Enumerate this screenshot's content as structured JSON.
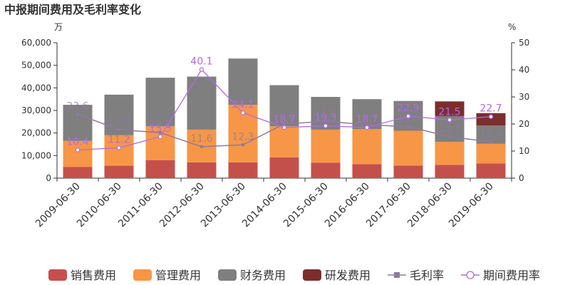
{
  "title": "中报期间费用及毛利率变化",
  "chart_data": {
    "type": "bar",
    "title": "中报期间费用及毛利率变化",
    "left_axis_label": "万",
    "right_axis_label": "%",
    "left_ylim": [
      0,
      60000
    ],
    "left_ticks": [
      0,
      10000,
      20000,
      30000,
      40000,
      50000,
      60000
    ],
    "left_tick_labels": [
      "0",
      "10,000",
      "20,000",
      "30,000",
      "40,000",
      "50,000",
      "60,000"
    ],
    "right_ylim": [
      0,
      50
    ],
    "right_ticks": [
      0,
      10,
      20,
      30,
      40,
      50
    ],
    "right_tick_labels": [
      "0",
      "10",
      "20",
      "30",
      "40",
      "50"
    ],
    "categories": [
      "2009-06-30",
      "2010-06-30",
      "2011-06-30",
      "2012-06-30",
      "2013-06-30",
      "2014-06-30",
      "2015-06-30",
      "2016-06-30",
      "2017-06-30",
      "2018-06-30",
      "2019-06-30"
    ],
    "grid": false,
    "legend_position": "bottom",
    "bar_series": [
      {
        "name": "销售费用",
        "color": "#c4504c",
        "values": [
          5000,
          5500,
          8000,
          7000,
          7000,
          9200,
          6800,
          6200,
          5600,
          5900,
          6500
        ]
      },
      {
        "name": "管理费用",
        "color": "#f79646",
        "values": [
          11500,
          13500,
          15000,
          14500,
          25500,
          13800,
          14700,
          15500,
          15400,
          10200,
          8700
        ]
      },
      {
        "name": "财务费用",
        "color": "#7f7f7f",
        "values": [
          16000,
          18000,
          21500,
          23500,
          20500,
          18200,
          14500,
          13300,
          13200,
          11400,
          8100
        ]
      },
      {
        "name": "研发费用",
        "color": "#7b2e2c",
        "values": [
          0,
          0,
          0,
          0,
          0,
          0,
          0,
          0,
          0,
          6500,
          5500
        ]
      }
    ],
    "line_series": [
      {
        "name": "毛利率",
        "color": "#8d7aa0",
        "marker": "square",
        "values": [
          23.6,
          17.9,
          16.8,
          11.6,
          12.3,
          20.0,
          21.0,
          19.7,
          19.0,
          15.3,
          13.4
        ],
        "labels": [
          "23.6",
          "17.9",
          "16.8",
          "11.6",
          "12.3",
          "20.0",
          "21.0",
          "19.7",
          "19.0",
          "15.3",
          "13.4"
        ]
      },
      {
        "name": "期间费用率",
        "color": "#b36ae6",
        "marker": "circle",
        "values": [
          10.4,
          11.2,
          15.3,
          40.1,
          24.1,
          18.7,
          19.3,
          18.7,
          22.9,
          21.5,
          22.7
        ],
        "labels": [
          "10.4",
          "11.2",
          "15.3",
          "40.1",
          "24.1",
          "18.7",
          "19.3",
          "18.7",
          "22.9",
          "21.5",
          "22.7"
        ]
      }
    ]
  }
}
